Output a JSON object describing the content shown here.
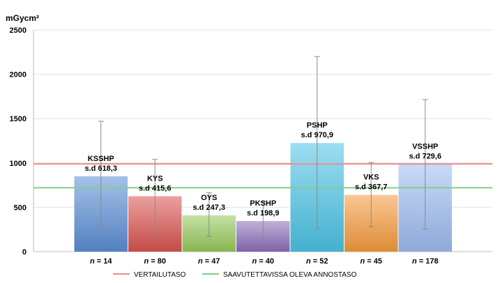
{
  "chart_data": {
    "type": "bar",
    "ylabel": "mGycm²",
    "ylim": [
      0,
      2500
    ],
    "yticks": [
      0,
      500,
      1000,
      1500,
      2000,
      2500
    ],
    "grid": true,
    "legend_position": "bottom",
    "categories": [
      "KSSHP",
      "KYS",
      "OYS",
      "PKSHP",
      "PSHP",
      "VKS",
      "VSSHP"
    ],
    "values": [
      850,
      625,
      410,
      345,
      1225,
      640,
      985
    ],
    "error_low": [
      230,
      210,
      170,
      155,
      260,
      280,
      255
    ],
    "error_high": [
      1470,
      1040,
      665,
      560,
      2200,
      1005,
      1715
    ],
    "sd_labels": [
      "s.d 618,3",
      "s.d 415,6",
      "s.d 247,3",
      "s.d 198,9",
      "s.d 970,9",
      "s.d 367,7",
      "s.d 729,6"
    ],
    "n_labels": [
      {
        "prefix": "n",
        "value": " = 14"
      },
      {
        "prefix": "n",
        "value": " = 80"
      },
      {
        "prefix": "n",
        "value": " = 47"
      },
      {
        "prefix": "n",
        "value": " = 40"
      },
      {
        "prefix": "n",
        "value": " = 52"
      },
      {
        "prefix": "n",
        "value": " = 45"
      },
      {
        "prefix": "n",
        "value": " = 178"
      }
    ],
    "colors": [
      "#5b8ed6",
      "#d9534f",
      "#96c95a",
      "#8c6fb8",
      "#4cc3e6",
      "#f59a3c",
      "#9dbcf0"
    ],
    "reference_lines": [
      {
        "name": "VERTAILUTASO",
        "value": 990,
        "color": "#f08a8a"
      },
      {
        "name": "SAAVUTETTAVISSA OLEVA ANNOSTASO",
        "value": 720,
        "color": "#7fcf8a"
      }
    ]
  }
}
